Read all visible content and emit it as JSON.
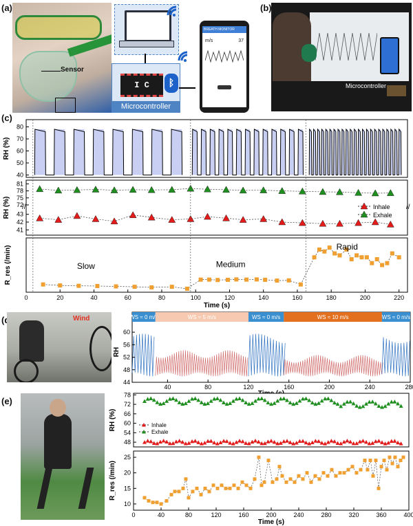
{
  "labels": {
    "a": "(a)",
    "b": "(b)",
    "c": "(c)",
    "d": "(d)",
    "e": "(e)"
  },
  "panel_a": {
    "sensor_label": "Sensor",
    "chip_label": "I C",
    "micro_label": "Microcontroller",
    "phone_title": "BREATH MONITOR",
    "phone_reading_1": "m/s",
    "phone_reading_2": "37",
    "colors": {
      "micro_box": "#4f84c4",
      "bluetooth": "#1d62c9"
    }
  },
  "panel_b": {
    "micro_label": "Microcontroller"
  },
  "panel_d": {
    "wind_label": "Wind"
  },
  "chart_data": [
    {
      "id": "c1",
      "type": "line",
      "ylabel": "RH (%)",
      "yticks": [
        40,
        50,
        60,
        70,
        80
      ],
      "ylim": [
        38,
        86
      ],
      "xlim": [
        0,
        225
      ],
      "segments": [
        {
          "period": 11.5,
          "start": 5,
          "end": 93
        },
        {
          "period": 5.2,
          "start": 98,
          "end": 164
        },
        {
          "period": 2.4,
          "start": 167,
          "end": 222
        }
      ],
      "low": 40,
      "high": 78,
      "dividers": [
        4,
        97,
        165
      ]
    },
    {
      "id": "c2",
      "type": "scatter",
      "ylabel": "RH (%)",
      "yticks": [
        41,
        42,
        43,
        72,
        75,
        78,
        81
      ],
      "xlim": [
        0,
        225
      ],
      "series": [
        {
          "name": "Exhale",
          "color": "#1f8f1f",
          "marker": "triangle",
          "x": [
            8,
            19,
            30,
            41,
            52,
            63,
            74,
            86,
            97,
            107,
            118,
            128,
            140,
            151,
            163,
            175,
            185,
            196,
            206,
            215
          ],
          "y": [
            78.8,
            78.2,
            78.4,
            78.6,
            78.3,
            78.5,
            78.4,
            78.5,
            79.0,
            78.7,
            78.5,
            78.2,
            78.3,
            78.0,
            77.8,
            77.6,
            77.5,
            77.2,
            77.0,
            77.1
          ]
        },
        {
          "name": "Inhale",
          "color": "#e31b1b",
          "marker": "triangle",
          "x": [
            8,
            19,
            30,
            41,
            52,
            63,
            74,
            86,
            97,
            107,
            118,
            128,
            140,
            151,
            163,
            175,
            185,
            196,
            206,
            215
          ],
          "y": [
            42.5,
            42.3,
            42.8,
            42.4,
            42.1,
            42.9,
            42.6,
            42.3,
            42.4,
            42.7,
            42.5,
            42.3,
            42.4,
            42.0,
            41.9,
            41.8,
            41.8,
            41.9,
            42.0,
            41.7
          ]
        }
      ],
      "legend": [
        "Inhale",
        "Exhale"
      ],
      "dividers": [
        4,
        97,
        165
      ]
    },
    {
      "id": "c3",
      "type": "line",
      "ylabel": "R_res (/min)",
      "xlabel": "Time (s)",
      "xticks": [
        0,
        20,
        40,
        60,
        80,
        100,
        120,
        140,
        160,
        180,
        200,
        220
      ],
      "xlim": [
        0,
        225
      ],
      "ylim": [
        2,
        30
      ],
      "series": [
        {
          "name": "R_res",
          "color": "#f0a030",
          "marker": "square",
          "x": [
            10,
            20,
            31,
            42,
            53,
            64,
            74,
            86,
            95,
            103,
            108,
            113,
            119,
            124,
            130,
            136,
            141,
            148,
            155,
            162,
            170,
            173,
            176,
            179,
            182,
            185,
            189,
            192,
            195,
            198,
            201,
            204,
            207,
            210,
            213,
            216,
            220
          ],
          "y": [
            6,
            5.5,
            5.3,
            5.2,
            5,
            4.8,
            4.5,
            4.8,
            3.8,
            8.5,
            8.5,
            8.3,
            8.4,
            8.6,
            8.5,
            8.6,
            8.4,
            8,
            8.1,
            6,
            20,
            24,
            23,
            25,
            22,
            21,
            24,
            19,
            21,
            20,
            20,
            17,
            19,
            16,
            17,
            22,
            20
          ]
        }
      ],
      "annotations": [
        {
          "text": "Slow",
          "x": 30,
          "y": 14
        },
        {
          "text": "Medium",
          "x": 112,
          "y": 15
        },
        {
          "text": "Rapid",
          "x": 183,
          "y": 24
        }
      ],
      "dividers": [
        4,
        97,
        165
      ]
    },
    {
      "id": "d",
      "type": "line",
      "ylabel": "RH",
      "xlabel": "Time (s)",
      "xticks": [
        40,
        80,
        120,
        160,
        200,
        240,
        280
      ],
      "yticks": [
        44,
        48,
        52,
        56,
        60
      ],
      "xlim": [
        5,
        280
      ],
      "ylim": [
        44,
        62
      ],
      "wind_bands": [
        {
          "label": "WS ≈ 0 m/s",
          "from": 5,
          "to": 28,
          "color": "#3a8fd0"
        },
        {
          "label": "WS ≈ 5 m/s",
          "from": 28,
          "to": 120,
          "color": "#f7c9b0"
        },
        {
          "label": "WS ≈ 0 m/s",
          "from": 120,
          "to": 155,
          "color": "#3a8fd0"
        },
        {
          "label": "WS ≈ 10 m/s",
          "from": 155,
          "to": 252,
          "color": "#e3701f"
        },
        {
          "label": "WS ≈ 0 m/s",
          "from": 252,
          "to": 280,
          "color": "#3a8fd0"
        }
      ]
    },
    {
      "id": "e1",
      "type": "scatter",
      "ylabel": "RH (%)",
      "yticks": [
        48,
        54,
        60,
        66,
        72,
        78
      ],
      "ylim": [
        45,
        79
      ],
      "xlim": [
        0,
        400
      ],
      "legend": [
        "Inhale",
        "Exhale"
      ],
      "series": [
        {
          "name": "Exhale",
          "color": "#1f8f1f",
          "base": 74
        },
        {
          "name": "Inhale",
          "color": "#e31b1b",
          "base": 48
        }
      ]
    },
    {
      "id": "e2",
      "type": "line",
      "ylabel": "R_res (/min)",
      "xlabel": "Time (s)",
      "xticks": [
        0,
        40,
        80,
        120,
        160,
        200,
        240,
        280,
        320,
        360,
        400
      ],
      "yticks": [
        10,
        15,
        20,
        25
      ],
      "ylim": [
        8,
        27
      ],
      "xlim": [
        0,
        400
      ],
      "series": [
        {
          "name": "R_res",
          "color": "#f0a030",
          "marker": "square",
          "x": [
            16,
            22,
            28,
            34,
            40,
            48,
            55,
            60,
            66,
            72,
            76,
            80,
            86,
            92,
            98,
            104,
            110,
            116,
            122,
            128,
            134,
            140,
            146,
            152,
            158,
            164,
            170,
            176,
            182,
            186,
            190,
            196,
            202,
            208,
            212,
            216,
            222,
            228,
            234,
            240,
            246,
            252,
            258,
            264,
            270,
            276,
            282,
            288,
            294,
            300,
            306,
            312,
            318,
            324,
            330,
            336,
            340,
            344,
            348,
            352,
            356,
            360,
            364,
            368,
            372,
            376,
            380,
            384,
            388,
            392
          ],
          "y": [
            12,
            11,
            10.5,
            10.5,
            10,
            11,
            13,
            14,
            14,
            15,
            18,
            12,
            14,
            15,
            13,
            15,
            14,
            16,
            15,
            16,
            15,
            15,
            16,
            15,
            17,
            16,
            15,
            18,
            25,
            16,
            17,
            24,
            17,
            18,
            22,
            19,
            17,
            18,
            17,
            19,
            18,
            20,
            17,
            19,
            18,
            20,
            19,
            21,
            19,
            20,
            20,
            21,
            22,
            20,
            21,
            24,
            21,
            24,
            19,
            24,
            15,
            22,
            24,
            21,
            25,
            23,
            25,
            22,
            24,
            25
          ]
        }
      ]
    }
  ]
}
